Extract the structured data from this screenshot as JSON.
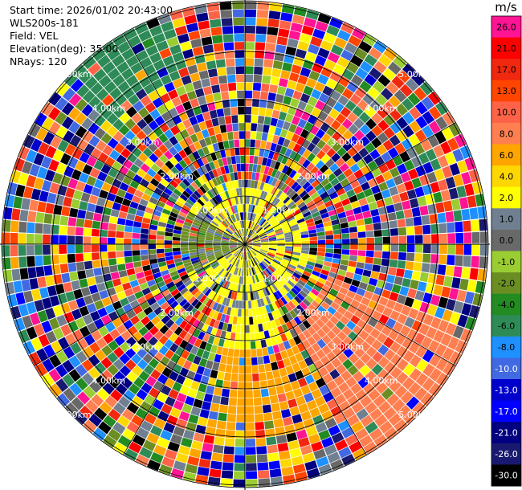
{
  "header": {
    "start_time": "Start time: 2026/01/02 20:43:00",
    "instrument": "WLS200s-181",
    "field": "Field: VEL",
    "elevation": "Elevation(deg): 35.00",
    "nrays": "NRays: 120"
  },
  "chart_data": {
    "type": "heatmap",
    "projection": "polar-ppi",
    "n_rays": 120,
    "elevation_deg": 35.0,
    "range_ring_labels": [
      "1.00km",
      "2.00km",
      "3.00km",
      "4.00km",
      "5.00km"
    ],
    "colorbar": {
      "unit": "m/s",
      "tick_labels": [
        "26.0",
        "21.0",
        "17.0",
        "13.0",
        "10.0",
        "8.0",
        "6.0",
        "4.0",
        "2.0",
        "1.0",
        "0.0",
        "-1.0",
        "-2.0",
        "-4.0",
        "-6.0",
        "-8.0",
        "-10.0",
        "-13.0",
        "-17.0",
        "-21.0",
        "-26.0",
        "-30.0"
      ],
      "colors": [
        "#ff1493",
        "#ff0000",
        "#f0280f",
        "#ff4500",
        "#ff6347",
        "#ff7f50",
        "#ffa500",
        "#ffd700",
        "#ffff00",
        "#708090",
        "#696969",
        "#9acd32",
        "#6b8e23",
        "#228b22",
        "#2e8b57",
        "#1e90ff",
        "#4169e1",
        "#0000cd",
        "#0000ff",
        "#000080",
        "#191970",
        "#000000"
      ]
    }
  }
}
